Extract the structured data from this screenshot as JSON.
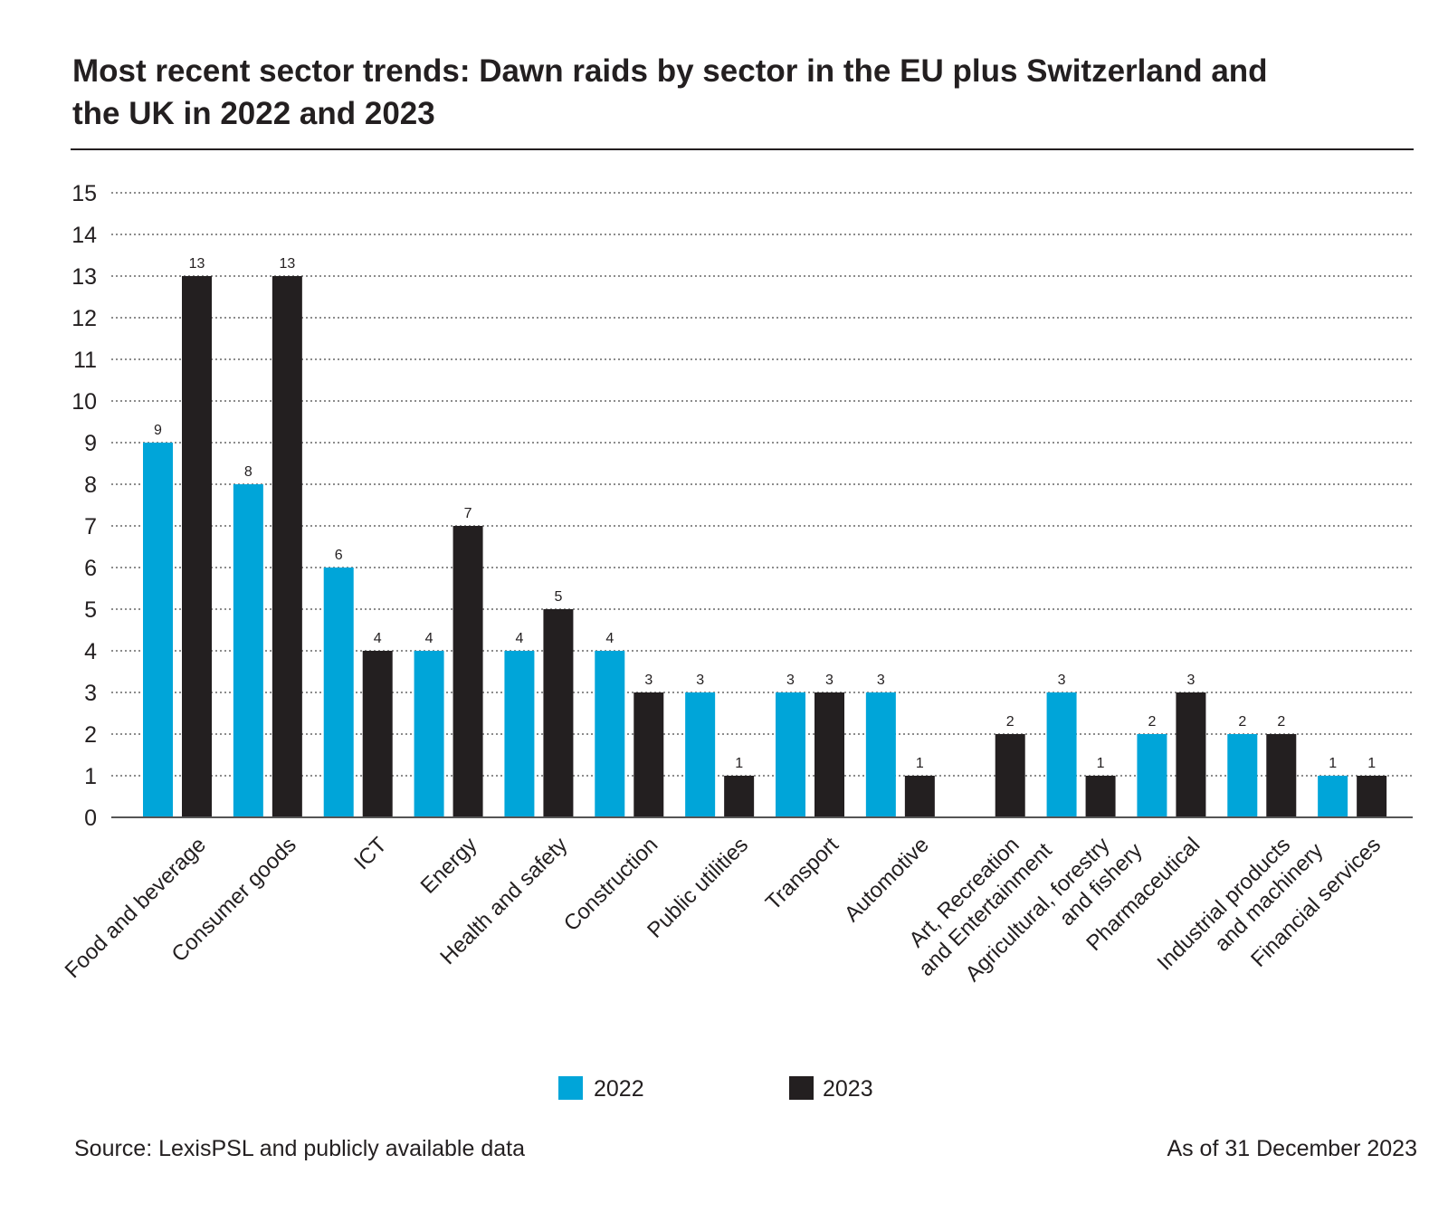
{
  "chart_data": {
    "type": "bar",
    "title": "Most recent sector trends: Dawn raids by sector in the EU plus Switzerland and the UK in 2022 and 2023",
    "title_lines": [
      "Most recent sector trends: Dawn raids by sector in the EU plus Switzerland and",
      "the UK in 2022 and 2023"
    ],
    "categories": [
      [
        "Food and beverage"
      ],
      [
        "Consumer goods"
      ],
      [
        "ICT"
      ],
      [
        "Energy"
      ],
      [
        "Health and safety"
      ],
      [
        "Construction"
      ],
      [
        "Public utilities"
      ],
      [
        "Transport"
      ],
      [
        "Automotive"
      ],
      [
        "Art, Recreation",
        "and Entertainment"
      ],
      [
        "Agricultural, forestry",
        "and fishery"
      ],
      [
        "Pharmaceutical"
      ],
      [
        "Industrial products",
        "and machinery"
      ],
      [
        "Financial services"
      ]
    ],
    "series": [
      {
        "name": "2022",
        "color": "#00a5d9",
        "values": [
          9,
          8,
          6,
          4,
          4,
          4,
          3,
          3,
          3,
          null,
          3,
          2,
          2,
          1
        ]
      },
      {
        "name": "2023",
        "color": "#231f20",
        "values": [
          13,
          13,
          4,
          7,
          5,
          3,
          1,
          3,
          1,
          2,
          1,
          3,
          2,
          1
        ]
      }
    ],
    "xlabel": "",
    "ylabel": "",
    "ylim": [
      0,
      15
    ],
    "yticks": [
      "0",
      "1",
      "2",
      "3",
      "4",
      "5",
      "6",
      "7",
      "8",
      "9",
      "10",
      "11",
      "12",
      "13",
      "14",
      "15"
    ],
    "grid": true,
    "legend_position": "bottom"
  },
  "footer": {
    "source": "Source: LexisPSL and publicly available data",
    "as_of": "As of 31 December 2023"
  }
}
